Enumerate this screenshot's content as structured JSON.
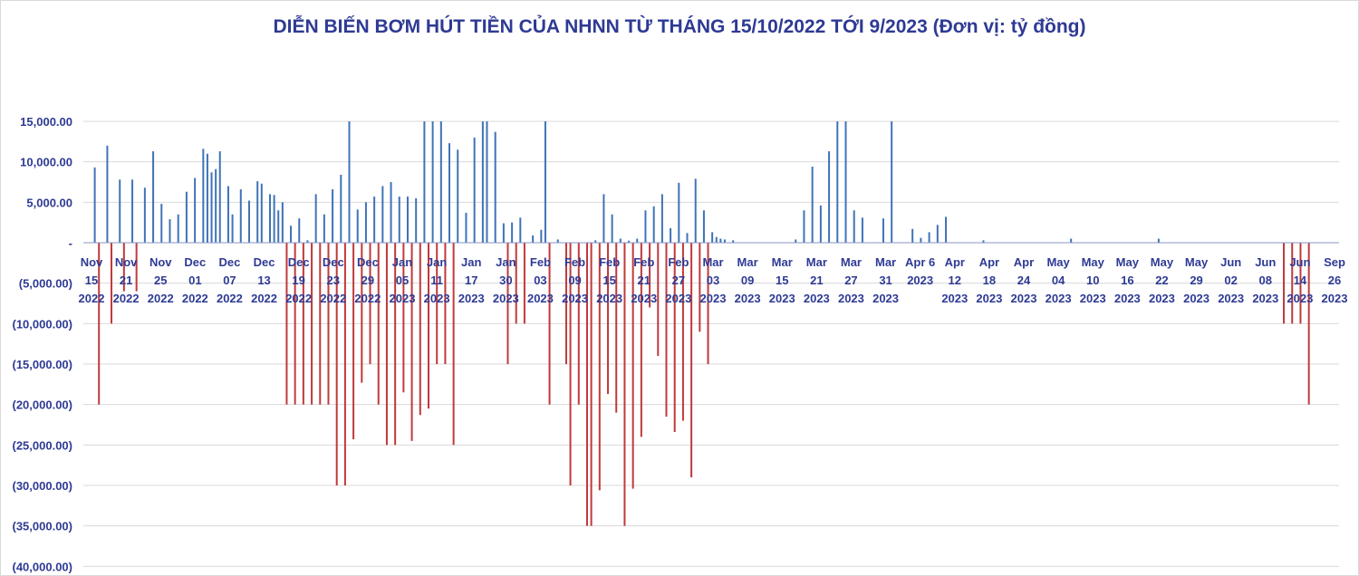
{
  "chart_data": {
    "type": "bar",
    "title": "DIỄN BIẾN BƠM HÚT TIỀN CỦA NHNN TỪ THÁNG 15/10/2022 TỚI 9/2023 (Đơn vị: tỷ đồng)",
    "xlabel": "",
    "ylabel": "",
    "ylim": [
      -40000,
      15000
    ],
    "grid": true,
    "legend": "none",
    "colors": {
      "positive": "#3f73b8",
      "negative": "#c0393b",
      "text": "#2e3a94",
      "grid": "#d9d9d9"
    },
    "y_ticks": [
      "15,000.00",
      "10,000.00",
      "5,000.00",
      "-",
      "(5,000.00)",
      "(10,000.00)",
      "(15,000.00)",
      "(20,000.00)",
      "(25,000.00)",
      "(30,000.00)",
      "(35,000.00)",
      "(40,000.00)"
    ],
    "x_ticks": [
      [
        "Nov",
        "15",
        "2022"
      ],
      [
        "Nov",
        "21",
        "2022"
      ],
      [
        "Nov",
        "25",
        "2022"
      ],
      [
        "Dec",
        "01",
        "2022"
      ],
      [
        "Dec",
        "07",
        "2022"
      ],
      [
        "Dec",
        "13",
        "2022"
      ],
      [
        "Dec",
        "19",
        "2022"
      ],
      [
        "Dec",
        "23",
        "2022"
      ],
      [
        "Dec",
        "29",
        "2022"
      ],
      [
        "Jan",
        "05",
        "2023"
      ],
      [
        "Jan",
        "11",
        "2023"
      ],
      [
        "Jan",
        "17",
        "2023"
      ],
      [
        "Jan",
        "30",
        "2023"
      ],
      [
        "Feb",
        "03",
        "2023"
      ],
      [
        "Feb",
        "09",
        "2023"
      ],
      [
        "Feb",
        "15",
        "2023"
      ],
      [
        "Feb",
        "21",
        "2023"
      ],
      [
        "Feb",
        "27",
        "2023"
      ],
      [
        "Mar",
        "03",
        "2023"
      ],
      [
        "Mar",
        "09",
        "2023"
      ],
      [
        "Mar",
        "15",
        "2023"
      ],
      [
        "Mar",
        "21",
        "2023"
      ],
      [
        "Mar",
        "27",
        "2023"
      ],
      [
        "Mar",
        "31",
        "2023"
      ],
      [
        "Apr 6",
        "2023",
        ""
      ],
      [
        "Apr",
        "12",
        "2023"
      ],
      [
        "Apr",
        "18",
        "2023"
      ],
      [
        "Apr",
        "24",
        "2023"
      ],
      [
        "May",
        "04",
        "2023"
      ],
      [
        "May",
        "10",
        "2023"
      ],
      [
        "May",
        "16",
        "2023"
      ],
      [
        "May",
        "22",
        "2023"
      ],
      [
        "May",
        "29",
        "2023"
      ],
      [
        "Jun",
        "02",
        "2023"
      ],
      [
        "Jun",
        "08",
        "2023"
      ],
      [
        "Jun",
        "14",
        "2023"
      ],
      [
        "Sep",
        "26",
        "2023"
      ]
    ],
    "x_index_range": [
      0,
      185
    ],
    "series": [
      {
        "values": [
          [
            1,
            9300
          ],
          [
            2,
            -20000
          ],
          [
            4,
            12000
          ],
          [
            5,
            -10000
          ],
          [
            7,
            7800
          ],
          [
            8,
            -6000
          ],
          [
            10,
            7800
          ],
          [
            11,
            -6000
          ],
          [
            13,
            6800
          ],
          [
            15,
            11300
          ],
          [
            17,
            4800
          ],
          [
            19,
            2900
          ],
          [
            21,
            3500
          ],
          [
            23,
            6300
          ],
          [
            25,
            8000
          ],
          [
            27,
            11600
          ],
          [
            28,
            11000
          ],
          [
            29,
            8700
          ],
          [
            30,
            9100
          ],
          [
            31,
            11300
          ],
          [
            33,
            7000
          ],
          [
            34,
            3500
          ],
          [
            36,
            6600
          ],
          [
            38,
            5200
          ],
          [
            40,
            7600
          ],
          [
            41,
            7300
          ],
          [
            43,
            6000
          ],
          [
            44,
            5900
          ],
          [
            45,
            4000
          ],
          [
            46,
            5000
          ],
          [
            47,
            -20000
          ],
          [
            48,
            2100
          ],
          [
            49,
            -20000
          ],
          [
            50,
            3000
          ],
          [
            51,
            -20000
          ],
          [
            52,
            300
          ],
          [
            53,
            -20000
          ],
          [
            54,
            6000
          ],
          [
            55,
            -20000
          ],
          [
            56,
            3500
          ],
          [
            57,
            -20000
          ],
          [
            58,
            6600
          ],
          [
            59,
            -30000
          ],
          [
            60,
            8400
          ],
          [
            61,
            -30000
          ],
          [
            62,
            15000
          ],
          [
            63,
            -24300
          ],
          [
            64,
            4100
          ],
          [
            65,
            -17300
          ],
          [
            66,
            5000
          ],
          [
            67,
            -15000
          ],
          [
            68,
            5700
          ],
          [
            69,
            -20000
          ],
          [
            70,
            7000
          ],
          [
            71,
            -25000
          ],
          [
            72,
            7500
          ],
          [
            73,
            -25000
          ],
          [
            74,
            5700
          ],
          [
            75,
            -18500
          ],
          [
            76,
            5700
          ],
          [
            77,
            -24500
          ],
          [
            78,
            5500
          ],
          [
            79,
            -21300
          ],
          [
            80,
            15000
          ],
          [
            81,
            -20500
          ],
          [
            82,
            15000
          ],
          [
            83,
            -15000
          ],
          [
            84,
            15000
          ],
          [
            85,
            -15000
          ],
          [
            86,
            12300
          ],
          [
            87,
            -25000
          ],
          [
            88,
            11500
          ],
          [
            90,
            3700
          ],
          [
            92,
            13000
          ],
          [
            94,
            15000
          ],
          [
            95,
            15000
          ],
          [
            97,
            13700
          ],
          [
            99,
            2400
          ],
          [
            100,
            -15000
          ],
          [
            101,
            2500
          ],
          [
            102,
            -10000
          ],
          [
            103,
            3100
          ],
          [
            104,
            -10000
          ],
          [
            106,
            900
          ],
          [
            108,
            1600
          ],
          [
            109,
            15000
          ],
          [
            110,
            -20000
          ],
          [
            112,
            400
          ],
          [
            114,
            -15000
          ],
          [
            115,
            -30000
          ],
          [
            117,
            -20000
          ],
          [
            119,
            -35000
          ],
          [
            120,
            -35000
          ],
          [
            121,
            300
          ],
          [
            122,
            -30600
          ],
          [
            123,
            6000
          ],
          [
            124,
            -18700
          ],
          [
            125,
            3500
          ],
          [
            126,
            -21000
          ],
          [
            127,
            500
          ],
          [
            128,
            -35000
          ],
          [
            129,
            250
          ],
          [
            130,
            -30400
          ],
          [
            131,
            500
          ],
          [
            132,
            -24000
          ],
          [
            133,
            4000
          ],
          [
            134,
            -8000
          ],
          [
            135,
            4500
          ],
          [
            136,
            -14000
          ],
          [
            137,
            6000
          ],
          [
            138,
            -21500
          ],
          [
            139,
            1800
          ],
          [
            140,
            -23400
          ],
          [
            141,
            7400
          ],
          [
            142,
            -22000
          ],
          [
            143,
            1200
          ],
          [
            144,
            -29000
          ],
          [
            145,
            7900
          ],
          [
            146,
            -11000
          ],
          [
            147,
            4000
          ],
          [
            148,
            -15000
          ],
          [
            149,
            1300
          ],
          [
            150,
            700
          ],
          [
            151,
            500
          ],
          [
            152,
            400
          ],
          [
            154,
            300
          ],
          [
            169,
            400
          ],
          [
            171,
            4000
          ],
          [
            173,
            9400
          ],
          [
            175,
            4600
          ],
          [
            177,
            11300
          ],
          [
            179,
            15000
          ],
          [
            181,
            15000
          ],
          [
            183,
            4000
          ],
          [
            185,
            3100
          ],
          [
            190,
            3000
          ],
          [
            192,
            15000
          ],
          [
            197,
            1700
          ],
          [
            199,
            600
          ],
          [
            201,
            1300
          ],
          [
            203,
            2200
          ],
          [
            205,
            3200
          ],
          [
            214,
            300
          ],
          [
            235,
            500
          ],
          [
            256,
            500
          ],
          [
            286,
            -10000
          ],
          [
            288,
            -10000
          ],
          [
            290,
            -10000
          ],
          [
            292,
            -20000
          ]
        ]
      }
    ]
  }
}
